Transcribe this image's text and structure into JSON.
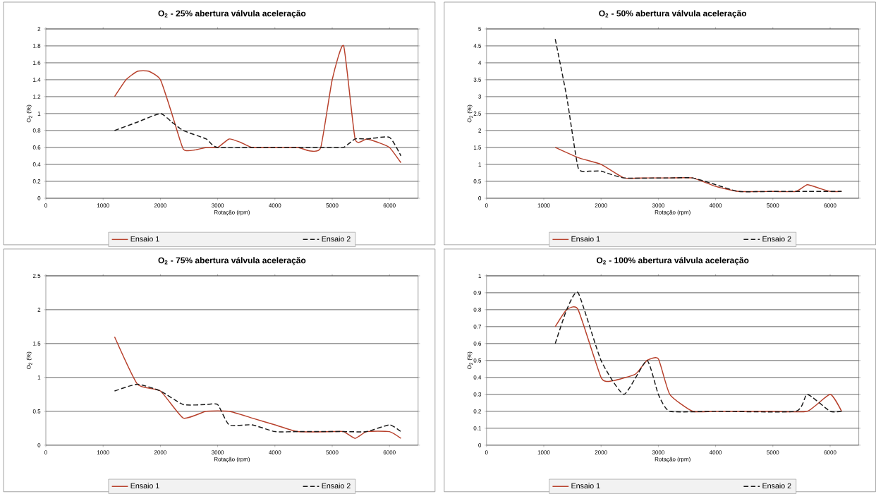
{
  "chart_data": [
    {
      "type": "line",
      "title": "O$_{2}$ - 25% abertura válvula aceleração",
      "xlabel": "Rotação (rpm)",
      "ylabel": "O$_{2}$ (%)",
      "xlim": [
        0,
        6500
      ],
      "xticks": [
        0,
        1000,
        2000,
        3000,
        4000,
        5000,
        6000
      ],
      "ylim": [
        0,
        2
      ],
      "yticks": [
        0,
        0.2,
        0.4,
        0.6,
        0.8,
        1,
        1.2,
        1.4,
        1.6,
        1.8,
        2
      ],
      "grid": "y",
      "legend": "bottom",
      "series": [
        {
          "name": "Ensaio 1",
          "color": "#b8412c",
          "line_style": "solid",
          "x": [
            1200,
            1400,
            1600,
            1800,
            2000,
            2200,
            2400,
            2600,
            2800,
            3000,
            3200,
            3400,
            3600,
            4000,
            4400,
            4600,
            4800,
            5000,
            5200,
            5400,
            5600,
            5800,
            6000,
            6200
          ],
          "values": [
            1.2,
            1.4,
            1.5,
            1.5,
            1.4,
            1.0,
            0.58,
            0.57,
            0.6,
            0.6,
            0.7,
            0.66,
            0.6,
            0.6,
            0.6,
            0.56,
            0.6,
            1.4,
            1.8,
            0.7,
            0.7,
            0.66,
            0.6,
            0.42
          ]
        },
        {
          "name": "Ensaio 2",
          "color": "#1a1a1a",
          "line_style": "dashed",
          "x": [
            1200,
            1600,
            2000,
            2200,
            2400,
            2800,
            3000,
            4000,
            5000,
            5200,
            5400,
            5600,
            6000,
            6200
          ],
          "values": [
            0.8,
            0.9,
            1.0,
            0.9,
            0.8,
            0.7,
            0.6,
            0.6,
            0.6,
            0.6,
            0.7,
            0.7,
            0.72,
            0.5
          ]
        }
      ]
    },
    {
      "type": "line",
      "title": "O$_{2}$ - 50% abertura válvula aceleração",
      "xlabel": "Rotação (rpm)",
      "ylabel": "O$_{2}$ (%)",
      "xlim": [
        0,
        6500
      ],
      "xticks": [
        0,
        1000,
        2000,
        3000,
        4000,
        5000,
        6000
      ],
      "ylim": [
        0,
        5
      ],
      "yticks": [
        0,
        0.5,
        1,
        1.5,
        2,
        2.5,
        3,
        3.5,
        4,
        4.5,
        5
      ],
      "grid": "y",
      "legend": "bottom",
      "series": [
        {
          "name": "Ensaio 1",
          "color": "#b8412c",
          "line_style": "solid",
          "x": [
            1200,
            1600,
            2000,
            2400,
            2800,
            3200,
            3600,
            4000,
            4400,
            5000,
            5400,
            5600,
            5800,
            6000,
            6200
          ],
          "values": [
            1.5,
            1.2,
            1.0,
            0.6,
            0.6,
            0.6,
            0.6,
            0.35,
            0.2,
            0.2,
            0.2,
            0.4,
            0.3,
            0.2,
            0.2
          ]
        },
        {
          "name": "Ensaio 2",
          "color": "#1a1a1a",
          "line_style": "dashed",
          "x": [
            1200,
            1400,
            1600,
            1800,
            2000,
            2400,
            3200,
            3600,
            4000,
            4400,
            5000,
            5600,
            6200
          ],
          "values": [
            4.7,
            3.0,
            0.9,
            0.8,
            0.8,
            0.6,
            0.6,
            0.6,
            0.4,
            0.2,
            0.2,
            0.2,
            0.2
          ]
        }
      ]
    },
    {
      "type": "line",
      "title": "O$_{2}$ - 75% abertura válvula aceleração",
      "xlabel": "Rotação (rpm)",
      "ylabel": "O$_{2}$ (%)",
      "xlim": [
        0,
        6500
      ],
      "xticks": [
        0,
        1000,
        2000,
        3000,
        4000,
        5000,
        6000
      ],
      "ylim": [
        0,
        2.5
      ],
      "yticks": [
        0,
        0.5,
        1,
        1.5,
        2,
        2.5
      ],
      "grid": "y",
      "legend": "bottom",
      "series": [
        {
          "name": "Ensaio 1",
          "color": "#b8412c",
          "line_style": "solid",
          "x": [
            1200,
            1600,
            2000,
            2400,
            2800,
            3200,
            3600,
            4000,
            4400,
            5000,
            5200,
            5400,
            5600,
            6000,
            6200
          ],
          "values": [
            1.6,
            0.9,
            0.8,
            0.4,
            0.5,
            0.5,
            0.4,
            0.3,
            0.2,
            0.2,
            0.2,
            0.1,
            0.2,
            0.2,
            0.1
          ]
        },
        {
          "name": "Ensaio 2",
          "color": "#1a1a1a",
          "line_style": "dashed",
          "x": [
            1200,
            1600,
            2000,
            2400,
            2800,
            3000,
            3200,
            3600,
            4000,
            4400,
            5200,
            5600,
            6000,
            6200
          ],
          "values": [
            0.8,
            0.9,
            0.8,
            0.6,
            0.6,
            0.6,
            0.3,
            0.3,
            0.2,
            0.2,
            0.2,
            0.2,
            0.3,
            0.2
          ]
        }
      ]
    },
    {
      "type": "line",
      "title": "O$_{2}$ - 100% abertura válvula aceleração",
      "xlabel": "Rotação (rpm)",
      "ylabel": "O$_{2}$ (%)",
      "xlim": [
        0,
        6500
      ],
      "xticks": [
        0,
        1000,
        2000,
        3000,
        4000,
        5000,
        6000
      ],
      "ylim": [
        0,
        1
      ],
      "yticks": [
        0,
        0.1,
        0.2,
        0.3,
        0.4,
        0.5,
        0.6,
        0.7,
        0.8,
        0.9,
        1
      ],
      "grid": "y",
      "legend": "bottom",
      "series": [
        {
          "name": "Ensaio 1",
          "color": "#b8412c",
          "line_style": "solid",
          "x": [
            1200,
            1400,
            1600,
            2000,
            2200,
            2600,
            2800,
            3000,
            3200,
            3600,
            4000,
            5000,
            5600,
            6000,
            6200
          ],
          "values": [
            0.7,
            0.8,
            0.8,
            0.4,
            0.38,
            0.42,
            0.5,
            0.51,
            0.3,
            0.2,
            0.2,
            0.2,
            0.2,
            0.3,
            0.2
          ]
        },
        {
          "name": "Ensaio 2",
          "color": "#1a1a1a",
          "line_style": "dashed",
          "x": [
            1200,
            1400,
            1600,
            2000,
            2400,
            2800,
            3000,
            3200,
            4000,
            5400,
            5600,
            6000,
            6200
          ],
          "values": [
            0.6,
            0.8,
            0.9,
            0.5,
            0.3,
            0.5,
            0.3,
            0.2,
            0.2,
            0.2,
            0.3,
            0.2,
            0.2
          ]
        }
      ]
    }
  ]
}
